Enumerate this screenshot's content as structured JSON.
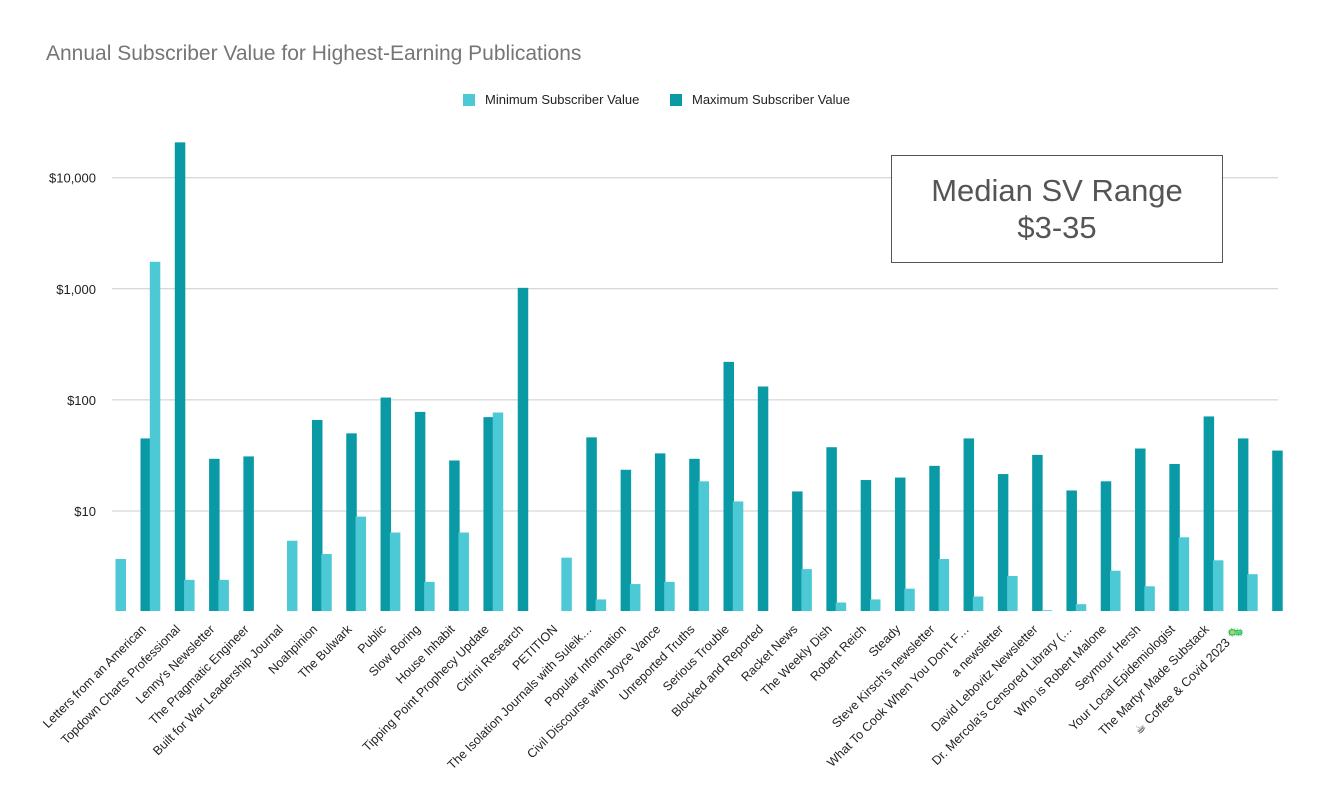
{
  "chart_data": {
    "type": "bar",
    "title": "Annual Subscriber Value for Highest-Earning Publications",
    "xlabel": "",
    "ylabel": "",
    "yscale": "log",
    "ylim": [
      1.0,
      25000
    ],
    "yticks": [
      10,
      100,
      1000,
      10000
    ],
    "ytick_labels": [
      "$10",
      "$100",
      "$1,000",
      "$10,000"
    ],
    "grid": true,
    "legend_position": "top",
    "categories": [
      "Letters from an American",
      "Topdown Charts Professional",
      "Lenny's Newsletter",
      "The Pragmatic Engineer",
      "Built for War Leadership Journal",
      "Noahpinion",
      "The Bulwark",
      "Public",
      "Slow Boring",
      "House Inhabit",
      "Tipping Point Prophecy Update",
      "Citrini Research",
      "PETITION",
      "The Isolation Journals with Suleik…",
      "Popular Information",
      "Civil Discourse with Joyce Vance",
      "Unreported Truths",
      "Serious Trouble",
      "Blocked and Reported",
      "Racket News",
      "The Weekly Dish",
      "Robert Reich",
      "Steady",
      "Steve Kirsch's newsletter",
      "What To Cook When You Don't F…",
      "a newsletter",
      "David Lebovitz Newsletter",
      "Dr. Mercola's Censored Library (…",
      "Who is Robert Malone",
      "Seymour Hersh",
      "Your Local Epidemiologist",
      "The Martyr Made Substack",
      "☕ Coffee & Covid 2023 🦠",
      ""
    ],
    "series": [
      {
        "name": "Minimum Subscriber Value",
        "color": "#4dc9d6",
        "values": [
          3.7,
          1750,
          2.4,
          2.4,
          null,
          5.4,
          4.1,
          8.9,
          6.4,
          2.3,
          6.4,
          77,
          null,
          3.8,
          1.6,
          2.2,
          2.3,
          18.5,
          12.2,
          null,
          3.0,
          1.5,
          1.6,
          2.0,
          3.7,
          1.7,
          2.6,
          1.05,
          1.45,
          2.9,
          2.1,
          5.8,
          3.6,
          2.7
        ]
      },
      {
        "name": "Maximum Subscriber Value",
        "color": "#0a9aa5",
        "values": [
          45,
          20800,
          29.5,
          31,
          null,
          66,
          50,
          105,
          78,
          28.5,
          70,
          1020,
          null,
          46,
          23.5,
          33,
          29.5,
          220,
          132,
          15,
          37.5,
          19,
          20,
          25.5,
          45,
          21.5,
          32,
          15.3,
          18.5,
          36.5,
          26.5,
          71,
          45,
          35
        ]
      }
    ]
  },
  "annotation": {
    "line1": "Median SV Range",
    "line2": "$3-35"
  },
  "colors": {
    "grid": "#cccccc",
    "axis_text": "#222222",
    "title": "#757575"
  }
}
